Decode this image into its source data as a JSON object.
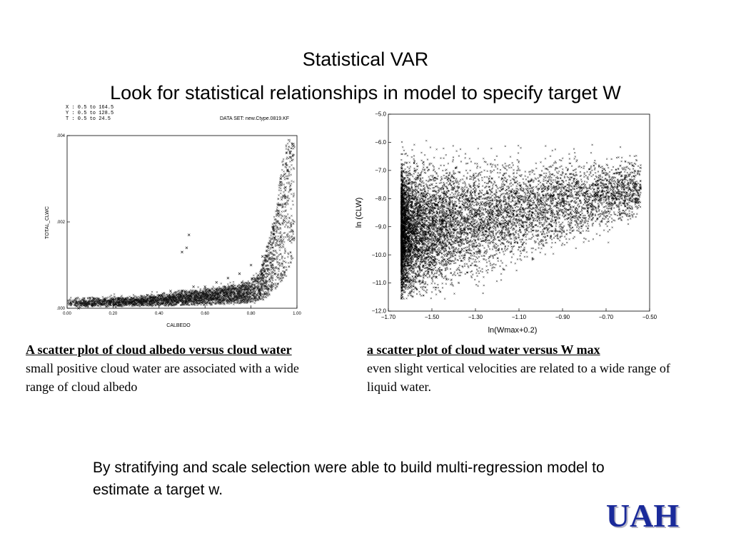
{
  "slide": {
    "title_line1": "Statistical VAR",
    "title_line2": "Look for statistical relationships in model to specify target W",
    "logo_text": "UAH",
    "bottom_text": "By stratifying and scale selection were able to build multi-regression model to estimate a target w."
  },
  "left_plot": {
    "header_lines": [
      "X : 0.5 to 164.5",
      "Y : 0.5 to 128.5",
      "T : 0.5 to 24.5"
    ],
    "dataset_label": "DATA SET: new.Ctype.0819.KF",
    "caption_title": "A scatter plot of cloud albedo versus cloud water",
    "caption_body": "small positive cloud water are associated with a wide range of cloud albedo"
  },
  "right_plot": {
    "caption_title": "a scatter plot of cloud water versus W max",
    "caption_body": "even slight vertical velocities are related to a wide range of liquid water."
  },
  "chart_data": [
    {
      "type": "scatter",
      "xlabel": "CALBEDO",
      "ylabel": "TOTAL_CLWC",
      "xlim": [
        0.0,
        1.0
      ],
      "ylim": [
        0.0,
        0.004
      ],
      "x_ticks": [
        "0.00",
        "0.20",
        "0.40",
        "0.60",
        "0.80",
        "1.00"
      ],
      "y_ticks": [
        ".000",
        ".002",
        ".004"
      ],
      "grid": false,
      "marker": "x",
      "x": [
        0.05,
        0.1,
        0.15,
        0.2,
        0.25,
        0.3,
        0.35,
        0.4,
        0.45,
        0.5,
        0.55,
        0.6,
        0.65,
        0.7,
        0.75,
        0.8,
        0.85,
        0.88,
        0.9,
        0.92,
        0.94,
        0.95,
        0.96,
        0.97,
        0.98,
        0.5,
        0.53,
        0.52,
        0.93,
        0.97
      ],
      "y": [
        0.0,
        0.0001,
        0.0001,
        0.0002,
        0.0002,
        0.0002,
        0.0003,
        0.0003,
        0.0004,
        0.0004,
        0.0005,
        0.0005,
        0.0006,
        0.0007,
        0.0008,
        0.001,
        0.0012,
        0.0015,
        0.0018,
        0.0022,
        0.0026,
        0.0028,
        0.0032,
        0.0035,
        0.0038,
        0.0013,
        0.0017,
        0.0014,
        0.003,
        0.0036
      ]
    },
    {
      "type": "scatter",
      "xlabel": "ln(Wmax+0.2)",
      "ylabel": "ln (CLW)",
      "xlim": [
        -1.7,
        -0.5
      ],
      "ylim": [
        -12.0,
        -5.0
      ],
      "x_ticks": [
        "−1.70",
        "−1.50",
        "−1.30",
        "−1.10",
        "−0.90",
        "−0.70",
        "−0.50"
      ],
      "y_ticks": [
        "−5.0",
        "−6.0",
        "−7.0",
        "−8.0",
        "−9.0",
        "−10.0",
        "−11.0",
        "−12.0"
      ],
      "grid": false,
      "marker": "x",
      "x": [
        -1.6,
        -1.58,
        -1.55,
        -1.52,
        -1.5,
        -1.48,
        -1.45,
        -1.42,
        -1.4,
        -1.35,
        -1.3,
        -1.25,
        -1.2,
        -1.15,
        -1.1,
        -1.05,
        -1.0,
        -0.95,
        -0.9,
        -0.85,
        -0.8,
        -0.75,
        -0.7,
        -0.65,
        -0.6,
        -0.55
      ],
      "y": [
        -9.2,
        -8.5,
        -10.0,
        -9.0,
        -7.5,
        -10.8,
        -8.8,
        -9.6,
        -8.2,
        -9.1,
        -8.6,
        -9.4,
        -8.3,
        -8.9,
        -8.0,
        -8.7,
        -8.1,
        -8.5,
        -7.9,
        -8.3,
        -7.8,
        -7.9,
        -7.6,
        -7.8,
        -7.5,
        -7.7
      ]
    }
  ]
}
